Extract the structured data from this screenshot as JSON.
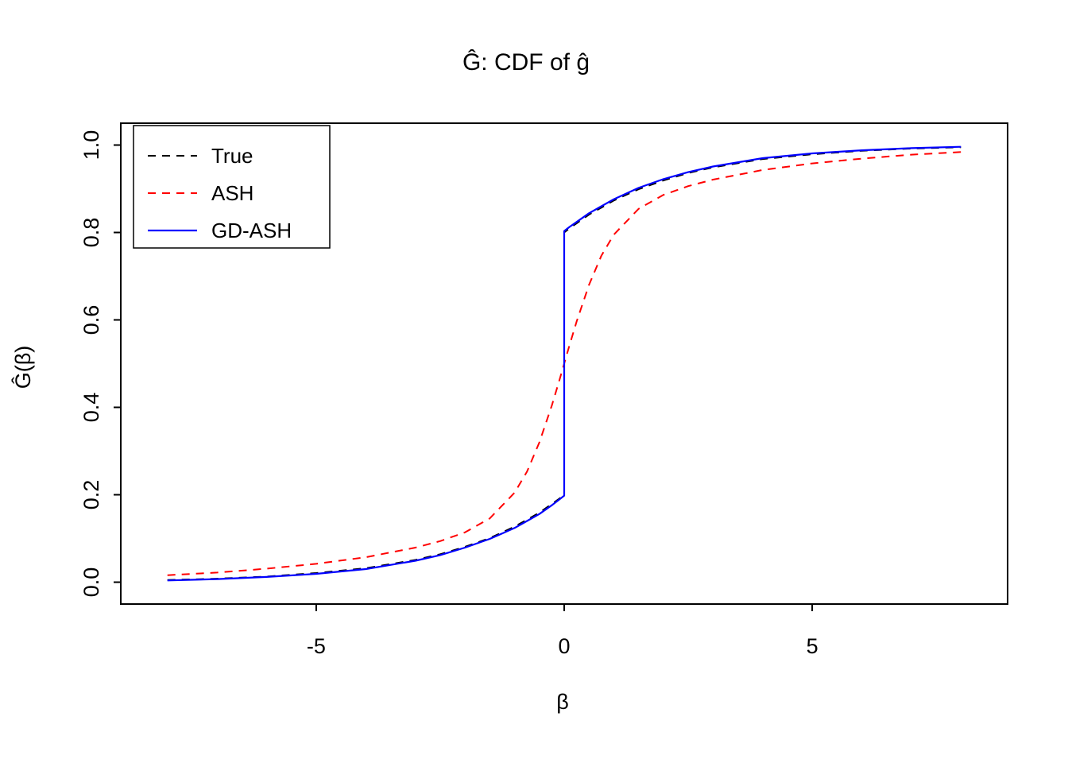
{
  "chart_data": {
    "type": "line",
    "title": "Ĝ: CDF of ĝ",
    "xlabel": "β",
    "ylabel": "Ĝ(β)",
    "xlim": [
      -8.94,
      8.94
    ],
    "ylim": [
      -0.05,
      1.05
    ],
    "grid": false,
    "legend_position": "top-left",
    "x_ticks": [
      -5,
      0,
      5
    ],
    "x_tick_labels": [
      "-5",
      "0",
      "5"
    ],
    "y_ticks": [
      0.0,
      0.2,
      0.4,
      0.6,
      0.8,
      1.0
    ],
    "y_tick_labels": [
      "0.0",
      "0.2",
      "0.4",
      "0.6",
      "0.8",
      "1.0"
    ],
    "series": [
      {
        "name": "True",
        "color": "#000000",
        "dash": "dashed",
        "width": 2,
        "points": [
          [
            -8,
            0.005
          ],
          [
            -7,
            0.008
          ],
          [
            -6,
            0.013
          ],
          [
            -5,
            0.021
          ],
          [
            -4,
            0.032
          ],
          [
            -3,
            0.051
          ],
          [
            -2.5,
            0.064
          ],
          [
            -2,
            0.081
          ],
          [
            -1.5,
            0.101
          ],
          [
            -1,
            0.127
          ],
          [
            -0.75,
            0.143
          ],
          [
            -0.5,
            0.159
          ],
          [
            -0.25,
            0.179
          ],
          [
            -0.1,
            0.191
          ],
          [
            0,
            0.2
          ],
          [
            0,
            0.8
          ],
          [
            0.1,
            0.809
          ],
          [
            0.25,
            0.821
          ],
          [
            0.5,
            0.841
          ],
          [
            0.75,
            0.857
          ],
          [
            1,
            0.873
          ],
          [
            1.5,
            0.899
          ],
          [
            2,
            0.919
          ],
          [
            2.5,
            0.936
          ],
          [
            3,
            0.949
          ],
          [
            4,
            0.968
          ],
          [
            5,
            0.979
          ],
          [
            6,
            0.987
          ],
          [
            7,
            0.992
          ],
          [
            8,
            0.995
          ]
        ]
      },
      {
        "name": "ASH",
        "color": "#ff0000",
        "dash": "dashed",
        "width": 2,
        "points": [
          [
            -8,
            0.016
          ],
          [
            -7,
            0.022
          ],
          [
            -6,
            0.031
          ],
          [
            -5,
            0.042
          ],
          [
            -4,
            0.057
          ],
          [
            -3,
            0.079
          ],
          [
            -2.5,
            0.094
          ],
          [
            -2,
            0.114
          ],
          [
            -1.5,
            0.146
          ],
          [
            -1,
            0.205
          ],
          [
            -0.75,
            0.253
          ],
          [
            -0.5,
            0.32
          ],
          [
            -0.25,
            0.404
          ],
          [
            -0.1,
            0.461
          ],
          [
            0,
            0.5
          ],
          [
            0.1,
            0.539
          ],
          [
            0.25,
            0.596
          ],
          [
            0.5,
            0.68
          ],
          [
            0.75,
            0.747
          ],
          [
            1,
            0.795
          ],
          [
            1.5,
            0.854
          ],
          [
            2,
            0.886
          ],
          [
            2.5,
            0.906
          ],
          [
            3,
            0.921
          ],
          [
            4,
            0.943
          ],
          [
            5,
            0.958
          ],
          [
            6,
            0.969
          ],
          [
            7,
            0.978
          ],
          [
            8,
            0.984
          ]
        ]
      },
      {
        "name": "GD-ASH",
        "color": "#0000ff",
        "dash": "solid",
        "width": 2.2,
        "points": [
          [
            -8,
            0.004
          ],
          [
            -7,
            0.007
          ],
          [
            -6,
            0.012
          ],
          [
            -5,
            0.019
          ],
          [
            -4,
            0.03
          ],
          [
            -3,
            0.049
          ],
          [
            -2.5,
            0.062
          ],
          [
            -2,
            0.079
          ],
          [
            -1.5,
            0.099
          ],
          [
            -1,
            0.124
          ],
          [
            -0.75,
            0.14
          ],
          [
            -0.5,
            0.156
          ],
          [
            -0.25,
            0.176
          ],
          [
            -0.1,
            0.189
          ],
          [
            0,
            0.198
          ],
          [
            0,
            0.803
          ],
          [
            0.1,
            0.812
          ],
          [
            0.25,
            0.824
          ],
          [
            0.5,
            0.844
          ],
          [
            0.75,
            0.86
          ],
          [
            1,
            0.876
          ],
          [
            1.5,
            0.902
          ],
          [
            2,
            0.922
          ],
          [
            2.5,
            0.938
          ],
          [
            3,
            0.951
          ],
          [
            4,
            0.97
          ],
          [
            5,
            0.981
          ],
          [
            6,
            0.988
          ],
          [
            7,
            0.993
          ],
          [
            8,
            0.996
          ]
        ]
      }
    ]
  }
}
